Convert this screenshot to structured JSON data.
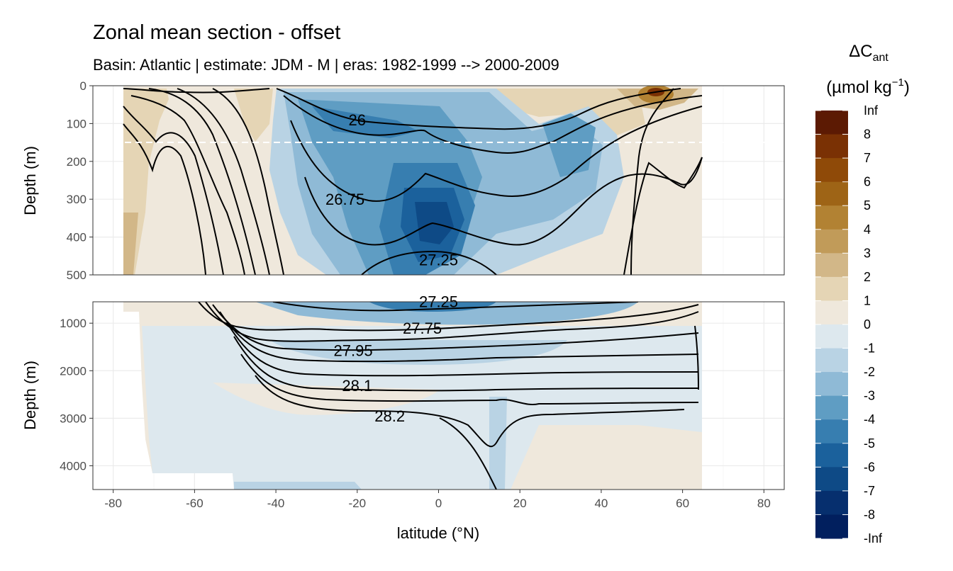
{
  "chart_data": {
    "type": "contour-section",
    "title": "Zonal mean section - offset",
    "subtitle": "Basin: Atlantic | estimate: JDM - M | eras: 1982-1999 --> 2000-2009",
    "xlabel": "latitude (°N)",
    "ylabel": "Depth (m)",
    "xlim": [
      -85,
      85
    ],
    "x_ticks": [
      -80,
      -60,
      -40,
      -20,
      0,
      20,
      40,
      60,
      80
    ],
    "panels": [
      {
        "name": "upper",
        "ylim": [
          0,
          500
        ],
        "y_ticks": [
          0,
          100,
          200,
          300,
          400,
          500
        ],
        "reference_line_depth": 150
      },
      {
        "name": "lower",
        "ylim": [
          550,
          4500
        ],
        "y_ticks": [
          1000,
          2000,
          3000,
          4000
        ]
      }
    ],
    "data_extent": {
      "lat_min": -78,
      "lat_max": 64
    },
    "legend": {
      "title": "ΔC",
      "title_sub": "ant",
      "unit_main": "(µmol kg",
      "unit_sup": "−1",
      "unit_close": ")",
      "levels": [
        "Inf",
        "8",
        "7",
        "6",
        "5",
        "4",
        "3",
        "2",
        "1",
        "0",
        "-1",
        "-2",
        "-3",
        "-4",
        "-5",
        "-6",
        "-7",
        "-8",
        "-Inf"
      ],
      "colors": [
        "#5c1a03",
        "#7a3104",
        "#8f4a08",
        "#9e6416",
        "#b28233",
        "#c19b59",
        "#d2b788",
        "#e5d5b5",
        "#efe8dc",
        "#dde8ee",
        "#b9d3e4",
        "#8fbad6",
        "#5f9dc3",
        "#377eb0",
        "#1b619c",
        "#0e4a86",
        "#062f6e",
        "#011f5e"
      ]
    },
    "isopycnal_labels": [
      {
        "text": "26",
        "lat": -20,
        "depth": 90
      },
      {
        "text": "26.75",
        "lat": -23,
        "depth": 300
      },
      {
        "text": "27.25",
        "lat": 0,
        "depth": 460
      },
      {
        "text": "27.25",
        "lat": 0,
        "depth": 540
      },
      {
        "text": "27.75",
        "lat": -4,
        "depth": 1100
      },
      {
        "text": "27.95",
        "lat": -21,
        "depth": 1570
      },
      {
        "text": "28.1",
        "lat": -20,
        "depth": 2310
      },
      {
        "text": "28.2",
        "lat": -12,
        "depth": 2950
      }
    ]
  }
}
